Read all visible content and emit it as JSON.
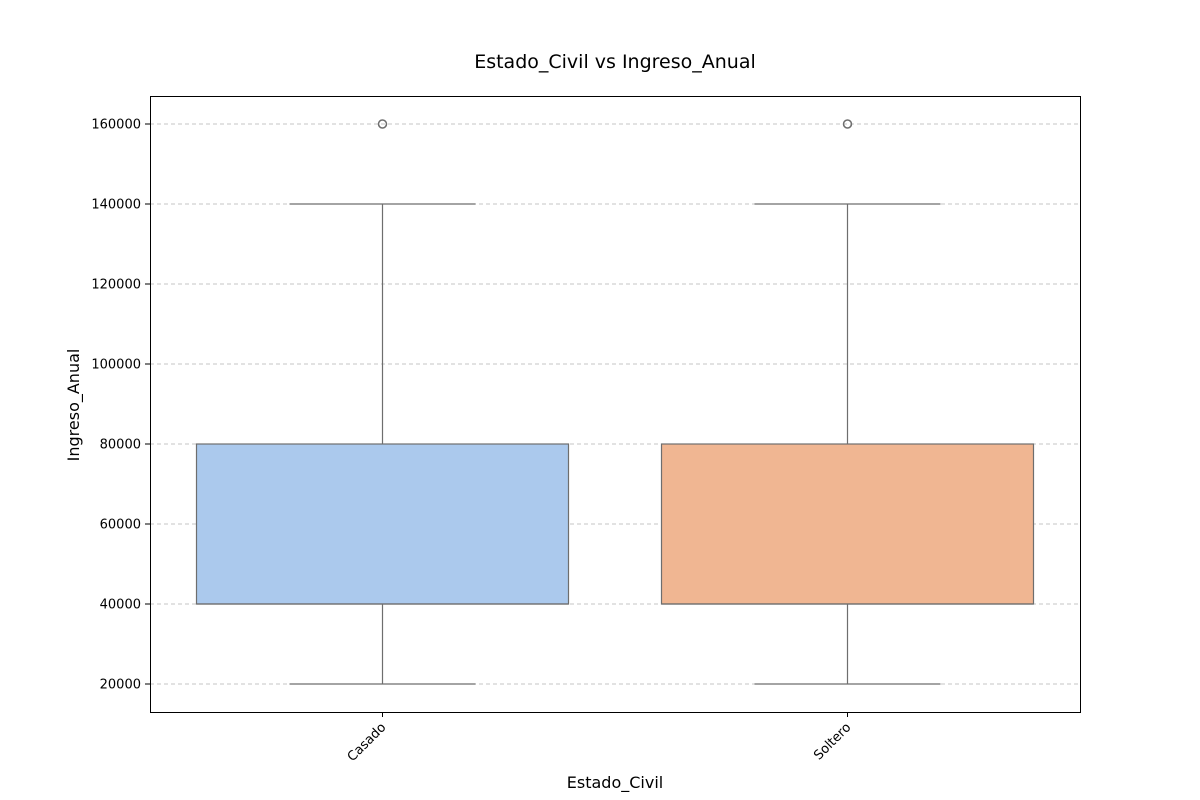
{
  "chart_data": {
    "type": "box",
    "title": "Estado_Civil vs Ingreso_Anual",
    "xlabel": "Estado_Civil",
    "ylabel": "Ingreso_Anual",
    "categories": [
      "Casado",
      "Soltero"
    ],
    "ylim": [
      13000,
      167000
    ],
    "yticks": [
      20000,
      40000,
      60000,
      80000,
      100000,
      120000,
      140000,
      160000
    ],
    "ytick_labels": [
      "20000",
      "40000",
      "60000",
      "80000",
      "100000",
      "120000",
      "140000",
      "160000"
    ],
    "grid": "y-dashed",
    "series": [
      {
        "category": "Casado",
        "whisker_low": 20000,
        "q1": 40000,
        "median": 40000,
        "q3": 80000,
        "whisker_high": 140000,
        "outliers": [
          160000
        ],
        "color": "#abc9ed"
      },
      {
        "category": "Soltero",
        "whisker_low": 20000,
        "q1": 40000,
        "median": 40000,
        "q3": 80000,
        "whisker_high": 140000,
        "outliers": [
          160000
        ],
        "color": "#f0b692"
      }
    ]
  }
}
